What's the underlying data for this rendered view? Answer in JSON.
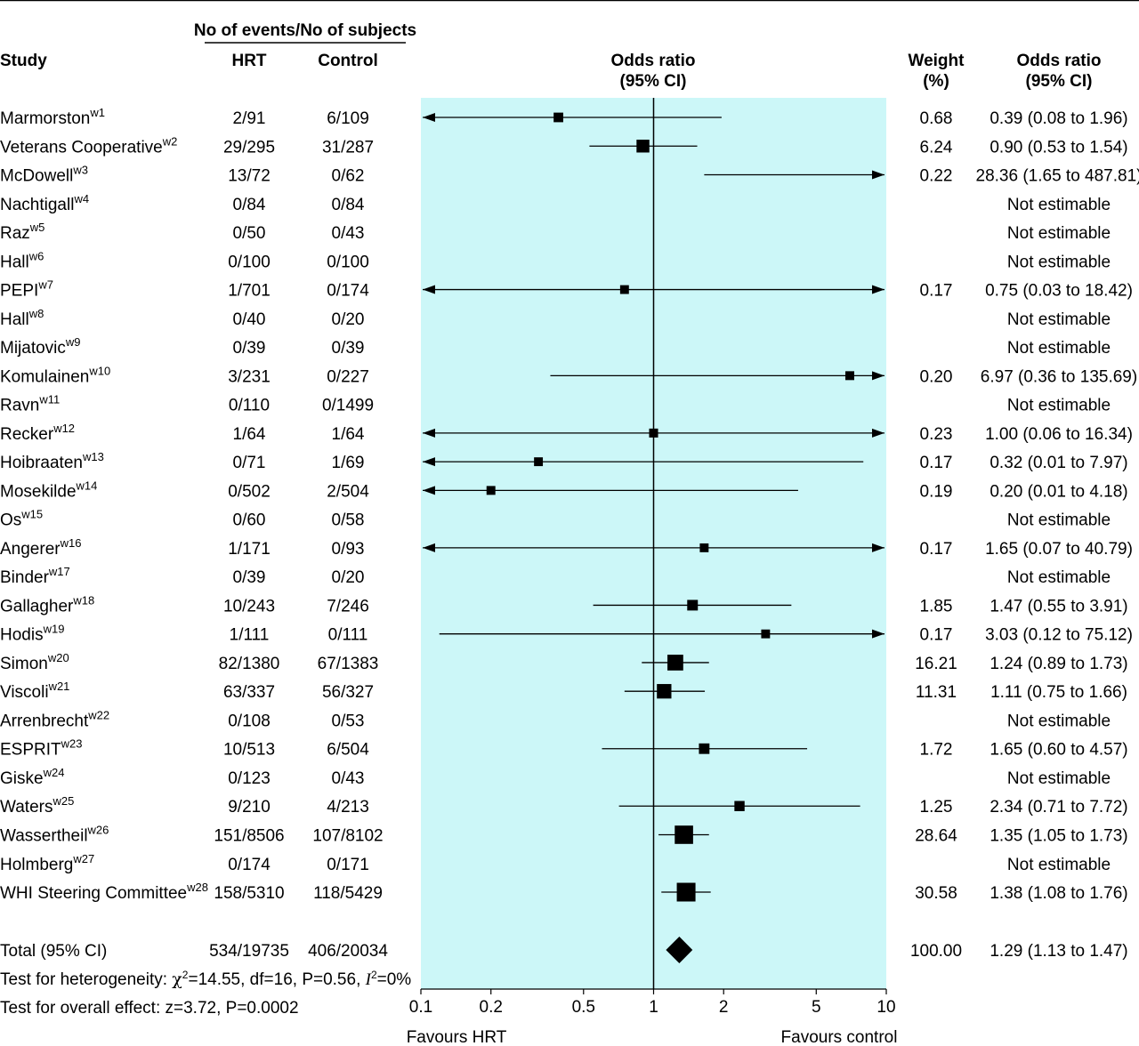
{
  "chart_data": {
    "type": "forest",
    "header": {
      "events_group": "No of events/No of subjects",
      "study": "Study",
      "hrt": "HRT",
      "control": "Control",
      "or_line1": "Odds ratio",
      "or_line2": "(95% CI)",
      "weight_line1": "Weight",
      "weight_line2": "(%)",
      "ortext_line1": "Odds ratio",
      "ortext_line2": "(95% CI)"
    },
    "x_axis": {
      "scale": "log",
      "range": [
        0.1,
        10
      ],
      "ticks": [
        0.1,
        0.2,
        0.5,
        1,
        2,
        5,
        10
      ],
      "tick_labels": [
        "0.1",
        "0.2",
        "0.5",
        "1",
        "2",
        "5",
        "10"
      ],
      "left_label": "Favours HRT",
      "right_label": "Favours control"
    },
    "colors": {
      "plot_background": "#ccf7f8",
      "mark": "#000000"
    },
    "studies": [
      {
        "name": "Marmorston",
        "sup": "w1",
        "hrt": "2/91",
        "control": "6/109",
        "weight": "0.68",
        "or_text": "0.39 (0.08 to 1.96)",
        "or": 0.39,
        "lo": 0.08,
        "hi": 1.96,
        "w": 0.68
      },
      {
        "name": "Veterans Cooperative",
        "sup": "w2",
        "hrt": "29/295",
        "control": "31/287",
        "weight": "6.24",
        "or_text": "0.90 (0.53 to 1.54)",
        "or": 0.9,
        "lo": 0.53,
        "hi": 1.54,
        "w": 6.24
      },
      {
        "name": "McDowell",
        "sup": "w3",
        "hrt": "13/72",
        "control": "0/62",
        "weight": "0.22",
        "or_text": "28.36 (1.65 to 487.81)",
        "or": 28.36,
        "lo": 1.65,
        "hi": 487.81,
        "w": 0.22
      },
      {
        "name": "Nachtigall",
        "sup": "w4",
        "hrt": "0/84",
        "control": "0/84",
        "weight": "",
        "or_text": "Not estimable"
      },
      {
        "name": "Raz",
        "sup": "w5",
        "hrt": "0/50",
        "control": "0/43",
        "weight": "",
        "or_text": "Not estimable"
      },
      {
        "name": "Hall",
        "sup": "w6",
        "hrt": "0/100",
        "control": "0/100",
        "weight": "",
        "or_text": "Not estimable"
      },
      {
        "name": "PEPI",
        "sup": "w7",
        "hrt": "1/701",
        "control": "0/174",
        "weight": "0.17",
        "or_text": "0.75 (0.03 to 18.42)",
        "or": 0.75,
        "lo": 0.03,
        "hi": 18.42,
        "w": 0.17
      },
      {
        "name": "Hall",
        "sup": "w8",
        "hrt": "0/40",
        "control": "0/20",
        "weight": "",
        "or_text": "Not estimable"
      },
      {
        "name": "Mijatovic",
        "sup": "w9",
        "hrt": "0/39",
        "control": "0/39",
        "weight": "",
        "or_text": "Not estimable"
      },
      {
        "name": "Komulainen",
        "sup": "w10",
        "hrt": "3/231",
        "control": "0/227",
        "weight": "0.20",
        "or_text": "6.97 (0.36 to 135.69)",
        "or": 6.97,
        "lo": 0.36,
        "hi": 135.69,
        "w": 0.2
      },
      {
        "name": "Ravn",
        "sup": "w11",
        "hrt": "0/110",
        "control": "0/1499",
        "weight": "",
        "or_text": "Not estimable"
      },
      {
        "name": "Recker",
        "sup": "w12",
        "hrt": "1/64",
        "control": "1/64",
        "weight": "0.23",
        "or_text": "1.00 (0.06 to 16.34)",
        "or": 1.0,
        "lo": 0.06,
        "hi": 16.34,
        "w": 0.23
      },
      {
        "name": "Hoibraaten",
        "sup": "w13",
        "hrt": "0/71",
        "control": "1/69",
        "weight": "0.17",
        "or_text": "0.32 (0.01 to 7.97)",
        "or": 0.32,
        "lo": 0.01,
        "hi": 7.97,
        "w": 0.17
      },
      {
        "name": "Mosekilde",
        "sup": "w14",
        "hrt": "0/502",
        "control": "2/504",
        "weight": "0.19",
        "or_text": "0.20 (0.01 to 4.18)",
        "or": 0.2,
        "lo": 0.01,
        "hi": 4.18,
        "w": 0.19
      },
      {
        "name": "Os",
        "sup": "w15",
        "hrt": "0/60",
        "control": "0/58",
        "weight": "",
        "or_text": "Not estimable"
      },
      {
        "name": "Angerer",
        "sup": "w16",
        "hrt": "1/171",
        "control": "0/93",
        "weight": "0.17",
        "or_text": "1.65 (0.07 to 40.79)",
        "or": 1.65,
        "lo": 0.07,
        "hi": 40.79,
        "w": 0.17
      },
      {
        "name": "Binder",
        "sup": "w17",
        "hrt": "0/39",
        "control": "0/20",
        "weight": "",
        "or_text": "Not estimable"
      },
      {
        "name": "Gallagher",
        "sup": "w18",
        "hrt": "10/243",
        "control": "7/246",
        "weight": "1.85",
        "or_text": "1.47 (0.55 to 3.91)",
        "or": 1.47,
        "lo": 0.55,
        "hi": 3.91,
        "w": 1.85
      },
      {
        "name": "Hodis",
        "sup": "w19",
        "hrt": "1/111",
        "control": "0/111",
        "weight": "0.17",
        "or_text": "3.03 (0.12 to 75.12)",
        "or": 3.03,
        "lo": 0.12,
        "hi": 75.12,
        "w": 0.17
      },
      {
        "name": "Simon",
        "sup": "w20",
        "hrt": "82/1380",
        "control": "67/1383",
        "weight": "16.21",
        "or_text": "1.24 (0.89 to 1.73)",
        "or": 1.24,
        "lo": 0.89,
        "hi": 1.73,
        "w": 16.21
      },
      {
        "name": "Viscoli",
        "sup": "w21",
        "hrt": "63/337",
        "control": "56/327",
        "weight": "11.31",
        "or_text": "1.11 (0.75 to 1.66)",
        "or": 1.11,
        "lo": 0.75,
        "hi": 1.66,
        "w": 11.31
      },
      {
        "name": "Arrenbrecht",
        "sup": "w22",
        "hrt": "0/108",
        "control": "0/53",
        "weight": "",
        "or_text": "Not estimable"
      },
      {
        "name": "ESPRIT",
        "sup": "w23",
        "hrt": "10/513",
        "control": "6/504",
        "weight": "1.72",
        "or_text": "1.65 (0.60 to 4.57)",
        "or": 1.65,
        "lo": 0.6,
        "hi": 4.57,
        "w": 1.72
      },
      {
        "name": "Giske",
        "sup": "w24",
        "hrt": "0/123",
        "control": "0/43",
        "weight": "",
        "or_text": "Not estimable"
      },
      {
        "name": "Waters",
        "sup": "w25",
        "hrt": "9/210",
        "control": "4/213",
        "weight": "1.25",
        "or_text": "2.34 (0.71 to 7.72)",
        "or": 2.34,
        "lo": 0.71,
        "hi": 7.72,
        "w": 1.25
      },
      {
        "name": "Wassertheil",
        "sup": "w26",
        "hrt": "151/8506",
        "control": "107/8102",
        "weight": "28.64",
        "or_text": "1.35 (1.05 to 1.73)",
        "or": 1.35,
        "lo": 1.05,
        "hi": 1.73,
        "w": 28.64
      },
      {
        "name": "Holmberg",
        "sup": "w27",
        "hrt": "0/174",
        "control": "0/171",
        "weight": "",
        "or_text": "Not estimable"
      },
      {
        "name": "WHI Steering Committee",
        "sup": "w28",
        "hrt": "158/5310",
        "control": "118/5429",
        "weight": "30.58",
        "or_text": "1.38 (1.08 to 1.76)",
        "or": 1.38,
        "lo": 1.08,
        "hi": 1.76,
        "w": 30.58
      }
    ],
    "total": {
      "label": "Total (95% CI)",
      "hrt": "534/19735",
      "control": "406/20034",
      "weight": "100.00",
      "or_text": "1.29 (1.13 to 1.47)",
      "or": 1.29,
      "lo": 1.13,
      "hi": 1.47
    },
    "heterogeneity": {
      "prefix": "Test for heterogeneity: ",
      "chi": "χ",
      "sq": "2",
      "mid": "=14.55, df=16, P=0.56, ",
      "i": "I",
      "sq2": "2",
      "suffix": "=0%"
    },
    "overall_effect": "Test for overall effect: z=3.72, P=0.0002"
  }
}
